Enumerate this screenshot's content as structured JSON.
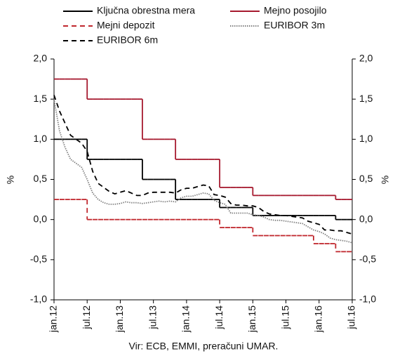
{
  "chart_data": {
    "type": "line",
    "y_label": "%",
    "y2_label": "%",
    "source": "Vir: ECB, EMMI, preračuni UMAR.",
    "categories": [
      "jan.12",
      null,
      null,
      null,
      null,
      null,
      "jul.12",
      null,
      null,
      null,
      null,
      null,
      "jan.13",
      null,
      null,
      null,
      null,
      null,
      "jul.13",
      null,
      null,
      null,
      null,
      null,
      "jan.14",
      null,
      null,
      null,
      null,
      null,
      "jul.14",
      null,
      null,
      null,
      null,
      null,
      "jan.15",
      null,
      null,
      null,
      null,
      null,
      "jul.15",
      null,
      null,
      null,
      null,
      null,
      "jan.16",
      null,
      null,
      null,
      null,
      null,
      "jul.16"
    ],
    "ylim": [
      -1,
      2
    ],
    "yticks": [
      {
        "value": -1,
        "label": "-1,0"
      },
      {
        "value": -0.5,
        "label": "-0,5"
      },
      {
        "value": 0,
        "label": "0,0"
      },
      {
        "value": 0.5,
        "label": "0,5"
      },
      {
        "value": 1,
        "label": "1,0"
      },
      {
        "value": 1.5,
        "label": "1,5"
      },
      {
        "value": 2,
        "label": "2,0"
      }
    ],
    "y2lim": [
      -1,
      2
    ],
    "y2ticks": [
      {
        "value": -1,
        "label": "-1,0"
      },
      {
        "value": -0.5,
        "label": "-0,5"
      },
      {
        "value": 0,
        "label": "0,0"
      },
      {
        "value": 0.5,
        "label": "0,5"
      },
      {
        "value": 1,
        "label": "1,0"
      },
      {
        "value": 1.5,
        "label": "1,5"
      },
      {
        "value": 2,
        "label": "2,0"
      }
    ],
    "grid": false,
    "series": [
      {
        "name": "Ključna obrestna mera",
        "color": "#000000",
        "style": "solid",
        "step": true,
        "values": [
          1,
          1,
          1,
          1,
          1,
          1,
          0.75,
          0.75,
          0.75,
          0.75,
          0.75,
          0.75,
          0.75,
          0.75,
          0.75,
          0.75,
          0.5,
          0.5,
          0.5,
          0.5,
          0.5,
          0.5,
          0.25,
          0.25,
          0.25,
          0.25,
          0.25,
          0.25,
          0.25,
          0.25,
          0.15,
          0.15,
          0.15,
          0.15,
          0.15,
          0.15,
          0.05,
          0.05,
          0.05,
          0.05,
          0.05,
          0.05,
          0.05,
          0.05,
          0.05,
          0.05,
          0.05,
          0.05,
          0.05,
          0.05,
          0.05,
          0,
          0,
          0,
          0
        ]
      },
      {
        "name": "Mejno posojilo",
        "color": "#a6192e",
        "style": "solid",
        "step": true,
        "values": [
          1.75,
          1.75,
          1.75,
          1.75,
          1.75,
          1.75,
          1.5,
          1.5,
          1.5,
          1.5,
          1.5,
          1.5,
          1.5,
          1.5,
          1.5,
          1.5,
          1,
          1,
          1,
          1,
          1,
          1,
          0.75,
          0.75,
          0.75,
          0.75,
          0.75,
          0.75,
          0.75,
          0.75,
          0.4,
          0.4,
          0.4,
          0.4,
          0.4,
          0.4,
          0.3,
          0.3,
          0.3,
          0.3,
          0.3,
          0.3,
          0.3,
          0.3,
          0.3,
          0.3,
          0.3,
          0.3,
          0.3,
          0.3,
          0.3,
          0.25,
          0.25,
          0.25,
          0.25
        ]
      },
      {
        "name": "Mejni depozit",
        "color": "#c0272d",
        "style": "dashed",
        "step": true,
        "values": [
          0.25,
          0.25,
          0.25,
          0.25,
          0.25,
          0.25,
          0,
          0,
          0,
          0,
          0,
          0,
          0,
          0,
          0,
          0,
          0,
          0,
          0,
          0,
          0,
          0,
          0,
          0,
          0,
          0,
          0,
          0,
          0,
          0,
          -0.1,
          -0.1,
          -0.1,
          -0.1,
          -0.1,
          -0.1,
          -0.2,
          -0.2,
          -0.2,
          -0.2,
          -0.2,
          -0.2,
          -0.2,
          -0.2,
          -0.2,
          -0.2,
          -0.2,
          -0.3,
          -0.3,
          -0.3,
          -0.3,
          -0.4,
          -0.4,
          -0.4,
          -0.4
        ]
      },
      {
        "name": "EURIBOR 3m",
        "color": "#808080",
        "style": "dotted",
        "step": false,
        "values": [
          1.5,
          1.1,
          0.9,
          0.75,
          0.7,
          0.65,
          0.5,
          0.33,
          0.25,
          0.21,
          0.19,
          0.19,
          0.2,
          0.22,
          0.21,
          0.21,
          0.2,
          0.21,
          0.22,
          0.23,
          0.22,
          0.23,
          0.22,
          0.27,
          0.29,
          0.29,
          0.31,
          0.33,
          0.32,
          0.24,
          0.21,
          0.19,
          0.08,
          0.08,
          0.08,
          0.08,
          0.06,
          0.05,
          0.03,
          0,
          -0.01,
          -0.01,
          -0.02,
          -0.03,
          -0.04,
          -0.05,
          -0.09,
          -0.13,
          -0.15,
          -0.18,
          -0.23,
          -0.25,
          -0.26,
          -0.27,
          -0.29
        ]
      },
      {
        "name": "EURIBOR 6m",
        "color": "#000000",
        "style": "dashed",
        "step": false,
        "values": [
          1.55,
          1.35,
          1.2,
          1.05,
          1,
          0.95,
          0.85,
          0.6,
          0.45,
          0.4,
          0.35,
          0.32,
          0.34,
          0.36,
          0.33,
          0.3,
          0.3,
          0.33,
          0.34,
          0.34,
          0.34,
          0.34,
          0.33,
          0.37,
          0.39,
          0.39,
          0.41,
          0.43,
          0.42,
          0.31,
          0.3,
          0.28,
          0.2,
          0.18,
          0.18,
          0.17,
          0.17,
          0.15,
          0.1,
          0.07,
          0.06,
          0.05,
          0.05,
          0.04,
          0.03,
          0.02,
          -0.02,
          -0.04,
          -0.06,
          -0.13,
          -0.13,
          -0.14,
          -0.14,
          -0.16,
          -0.18
        ]
      }
    ]
  }
}
